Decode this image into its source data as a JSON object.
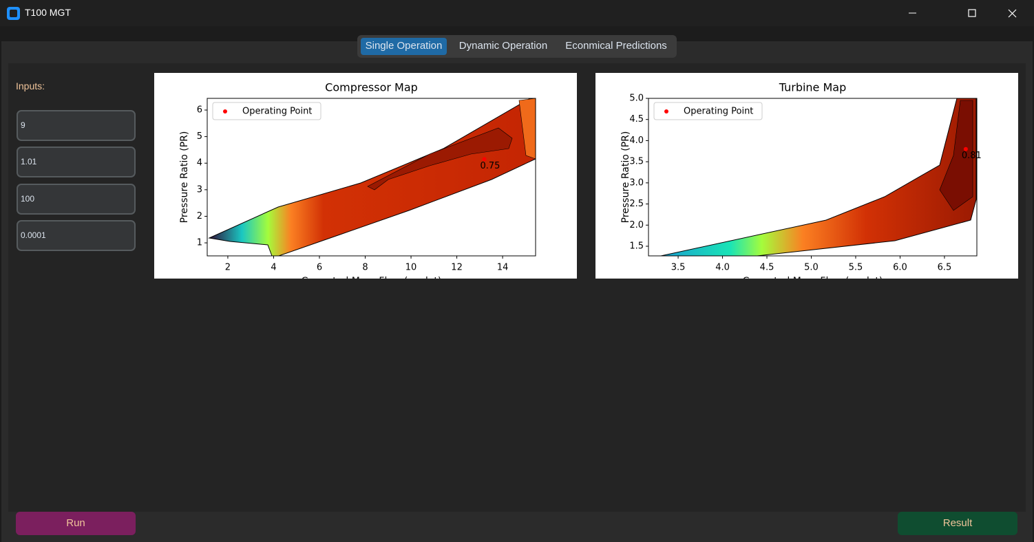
{
  "window": {
    "title": "T100 MGT"
  },
  "tabs": [
    "Single Operation",
    "Dynamic Operation",
    "Econmical Predictions"
  ],
  "inputs": {
    "label": "Inputs:",
    "fields": [
      "9",
      "1.01",
      "100",
      "0.0001"
    ]
  },
  "buttons": {
    "run": "Run",
    "result": "Result"
  },
  "chart_data": [
    {
      "type": "scatter",
      "title": "Compressor Map",
      "x_label": "Corrected Mass Flow (m_dot)",
      "y_label": "Pressure Ratio (PR)",
      "series": [
        {
          "name": "Operating Point",
          "color": "#ff0000",
          "x": [
            13.2
          ],
          "values": [
            4.15
          ]
        }
      ],
      "annotations": [
        "0.75"
      ],
      "legend": "upper left",
      "xlim": [
        1.1,
        15.44
      ],
      "ylim": [
        0.51,
        6.44
      ],
      "xticks": [
        2,
        4,
        6,
        8,
        10,
        12,
        14
      ],
      "yticks": [
        1,
        2,
        3,
        4,
        5,
        6
      ]
    },
    {
      "type": "scatter",
      "title": "Turbine Map",
      "x_label": "Corrected Mass Flow (m_dot)",
      "y_label": "Pressure Ratio (PR)",
      "series": [
        {
          "name": "Operating Point",
          "color": "#ff0000",
          "x": [
            6.74
          ],
          "values": [
            3.8
          ]
        }
      ],
      "annotations": [
        "0.81"
      ],
      "legend": "upper left",
      "xlim": [
        3.166,
        6.865
      ],
      "ylim": [
        1.272,
        5.0
      ],
      "xticks": [
        3.5,
        {
          "value": 4,
          "label": "4.0"
        },
        4.5,
        {
          "value": 5,
          "label": "5.0"
        },
        5.5,
        {
          "value": 6,
          "label": "6.0"
        },
        6.5
      ],
      "yticks": [
        1.5,
        {
          "value": 2,
          "label": "2.0"
        },
        2.5,
        {
          "value": 3,
          "label": "3.0"
        },
        3.5,
        {
          "value": 4,
          "label": "4.0"
        },
        4.5,
        {
          "value": 5,
          "label": "5.0"
        }
      ]
    }
  ]
}
